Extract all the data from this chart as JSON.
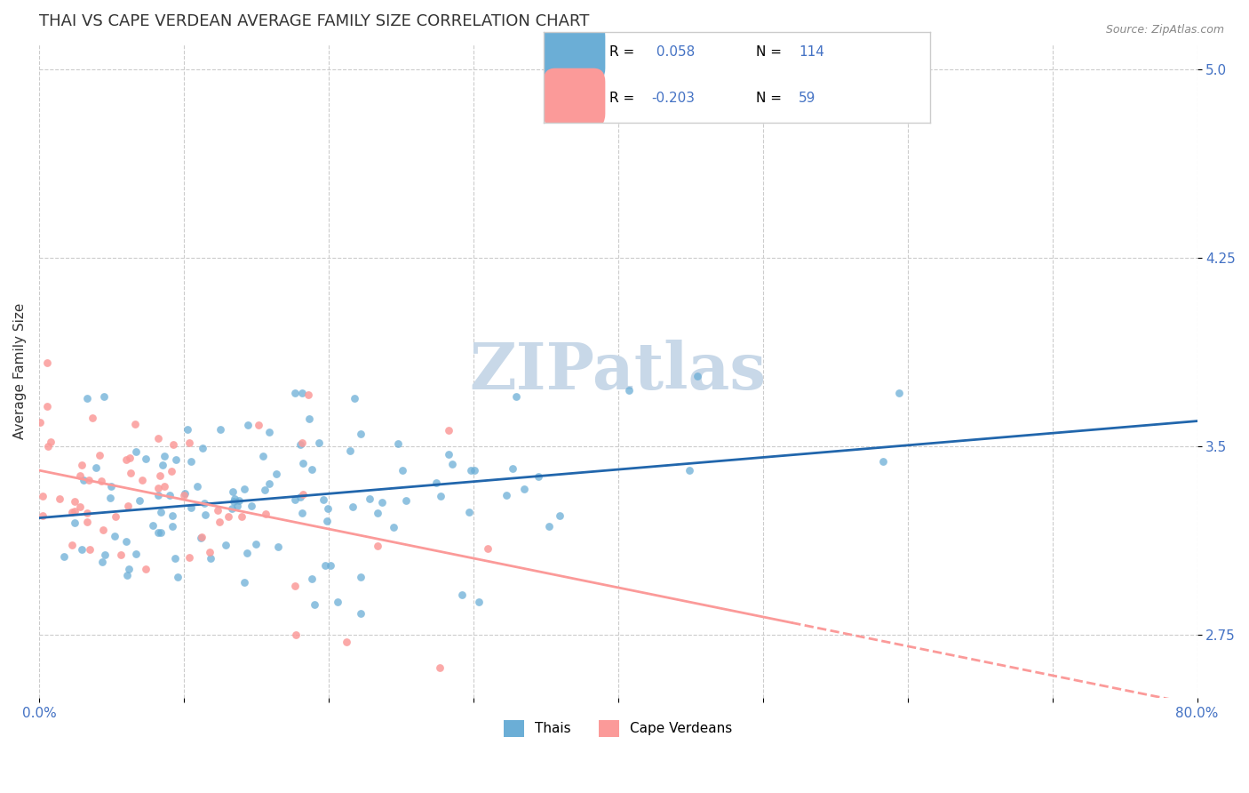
{
  "title": "THAI VS CAPE VERDEAN AVERAGE FAMILY SIZE CORRELATION CHART",
  "source_text": "Source: ZipAtlas.com",
  "xlabel": "",
  "ylabel": "Average Family Size",
  "xlim": [
    0.0,
    0.8
  ],
  "ylim": [
    2.5,
    5.1
  ],
  "yticks": [
    2.75,
    3.5,
    4.25,
    5.0
  ],
  "xticks": [
    0.0,
    0.1,
    0.2,
    0.3,
    0.4,
    0.5,
    0.6,
    0.7,
    0.8
  ],
  "xtick_labels": [
    "0.0%",
    "",
    "",
    "",
    "",
    "",
    "",
    "",
    "80.0%"
  ],
  "thai_R": 0.058,
  "thai_N": 114,
  "cape_R": -0.203,
  "cape_N": 59,
  "thai_color": "#6baed6",
  "cape_color": "#fb9a99",
  "thai_line_color": "#2166ac",
  "cape_line_color": "#e8a0b0",
  "background_color": "#ffffff",
  "title_color": "#333333",
  "axis_label_color": "#333333",
  "tick_label_color": "#4472c4",
  "watermark_text": "ZIPatlas",
  "watermark_color": "#c8d8e8",
  "legend_R_color": "#4472c4",
  "legend_N_color": "#4472c4",
  "grid_color": "#cccccc",
  "grid_style": "--",
  "title_fontsize": 13,
  "axis_label_fontsize": 11,
  "tick_fontsize": 11
}
